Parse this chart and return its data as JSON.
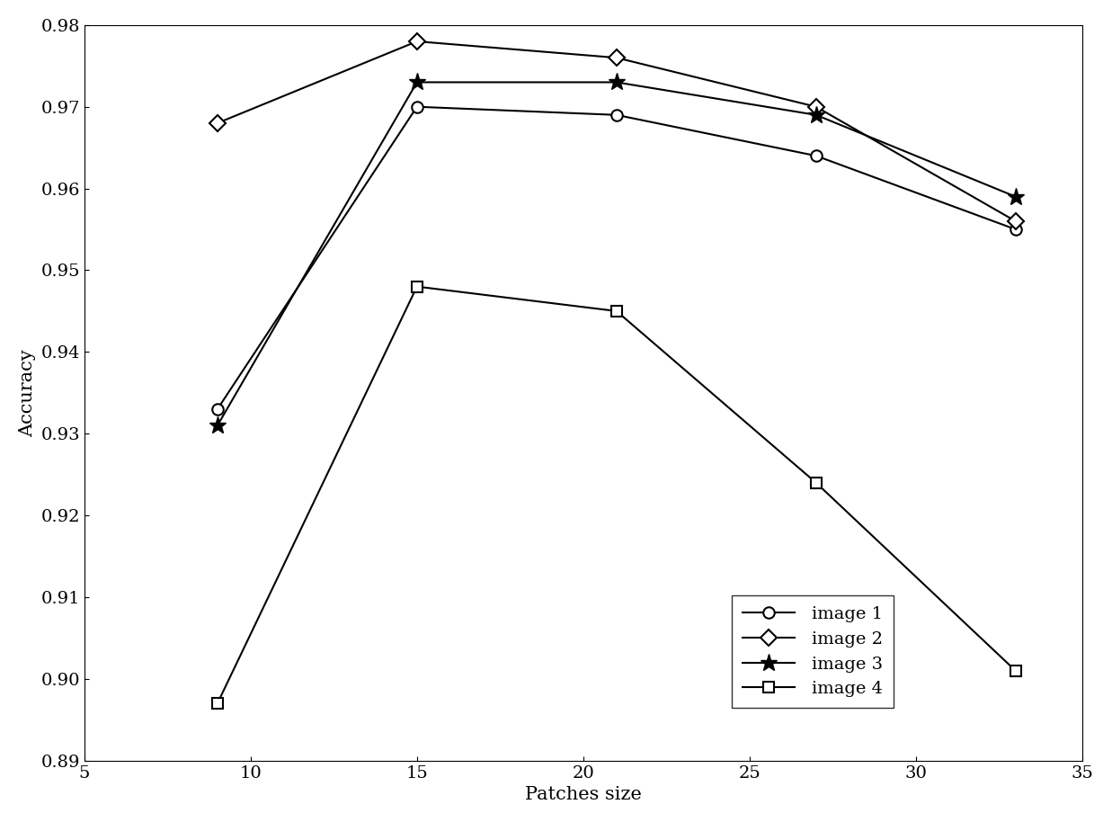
{
  "x": [
    9,
    15,
    21,
    27,
    33
  ],
  "image1": [
    0.933,
    0.97,
    0.969,
    0.964,
    0.955
  ],
  "image2": [
    0.968,
    0.978,
    0.976,
    0.97,
    0.956
  ],
  "image3": [
    0.931,
    0.973,
    0.973,
    0.969,
    0.959
  ],
  "image4": [
    0.897,
    0.948,
    0.945,
    0.924,
    0.901
  ],
  "xlabel": "Patches size",
  "ylabel": "Accuracy",
  "xlim": [
    5,
    35
  ],
  "ylim": [
    0.89,
    0.98
  ],
  "xticks": [
    5,
    10,
    15,
    20,
    25,
    30,
    35
  ],
  "yticks": [
    0.89,
    0.9,
    0.91,
    0.92,
    0.93,
    0.94,
    0.95,
    0.96,
    0.97,
    0.98
  ],
  "legend_labels": [
    "image 1",
    "image 2",
    "image 3",
    "image 4"
  ],
  "markers": [
    "o",
    "D",
    "*",
    "s"
  ],
  "marker_sizes": [
    9,
    9,
    14,
    9
  ],
  "line_color": "#000000",
  "background_color": "#ffffff",
  "label_fontsize": 15,
  "tick_fontsize": 14,
  "legend_fontsize": 14
}
